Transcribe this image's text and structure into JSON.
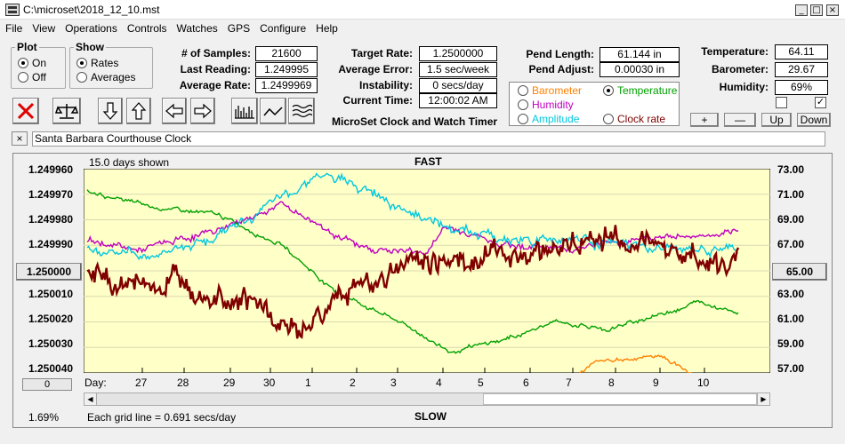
{
  "window": {
    "title": "C:\\microset\\2018_12_10.mst",
    "minimize": "_",
    "maximize": "□",
    "close": "×"
  },
  "menu": [
    "File",
    "View",
    "Operations",
    "Controls",
    "Watches",
    "GPS",
    "Configure",
    "Help"
  ],
  "plot": {
    "legend": "Plot",
    "on": "On",
    "off": "Off",
    "selected": "On"
  },
  "show": {
    "legend": "Show",
    "rates": "Rates",
    "averages": "Averages",
    "selected": "Rates"
  },
  "stats": {
    "samples_label": "# of Samples:",
    "samples": "21600",
    "last_label": "Last Reading:",
    "last": "1.249995",
    "avgrate_label": "Average Rate:",
    "avgrate": "1.2499969",
    "target_label": "Target Rate:",
    "target": "1.2500000",
    "avgerr_label": "Average Error:",
    "avgerr": "1.5 sec/week",
    "instab_label": "Instability:",
    "instab": "0 secs/day",
    "time_label": "Current Time:",
    "time": "12:00:02 AM",
    "pendlen_label": "Pend Length:",
    "pendlen": "61.144 in",
    "pendadj_label": "Pend Adjust:",
    "pendadj": "0.00030 in",
    "temp_label": "Temperature:",
    "temp": "64.11",
    "baro_label": "Barometer:",
    "baro": "29.67",
    "hum_label": "Humidity:",
    "hum": "69%"
  },
  "app_heading": "MicroSet Clock and Watch Timer",
  "sensors": [
    {
      "label": "Barometer",
      "color": "#ff8000",
      "selected": false
    },
    {
      "label": "Temperature",
      "color": "#00a000",
      "selected": true
    },
    {
      "label": "Humidity",
      "color": "#c000c0",
      "selected": false
    },
    {
      "label": "Amplitude",
      "color": "#00c8e0",
      "selected": false
    },
    {
      "label": "Clock rate",
      "color": "#800000",
      "selected": false
    }
  ],
  "checkboxes": [
    {
      "checked": false
    },
    {
      "checked": true
    }
  ],
  "adjust_buttons": [
    "+",
    "—",
    "Up",
    "Down"
  ],
  "clock_name": "Santa Barbara Courthouse Clock",
  "close_x": "×",
  "chart_data": {
    "type": "line",
    "days_shown": "15.0 days shown",
    "top_label": "FAST",
    "bottom_label": "SLOW",
    "left_ticks": [
      "1.249960",
      "1.249970",
      "1.249980",
      "1.249990",
      "1.250000",
      "1.250010",
      "1.250020",
      "1.250030",
      "1.250040"
    ],
    "right_ticks": [
      "73.00",
      "71.00",
      "69.00",
      "67.00",
      "65.00",
      "63.00",
      "61.00",
      "59.00",
      "57.00"
    ],
    "left_center": "1.250000",
    "right_center": "65.00",
    "left_range": [
      1.24996,
      1.25004
    ],
    "right_range": [
      57,
      73
    ],
    "day_label": "Day:",
    "x_labels": [
      "27",
      "28",
      "29",
      "30",
      "1",
      "2",
      "3",
      "4",
      "5",
      "6",
      "7",
      "8",
      "9",
      "10"
    ],
    "grid_note": "Each grid line = 0.691 secs/day",
    "zoom": "1.69%",
    "offset_btn": "0",
    "series": [
      {
        "color": "#800000",
        "width": 2.4,
        "y_from": -0.2,
        "y_to": -0.1,
        "noise": 3.0,
        "wave": [
          [
            0,
            -0.2
          ],
          [
            0.08,
            -0.6
          ],
          [
            0.16,
            -0.3
          ],
          [
            0.24,
            -1.0
          ],
          [
            0.32,
            -2.5
          ],
          [
            0.4,
            -0.8
          ],
          [
            0.5,
            0.4
          ],
          [
            0.6,
            0.5
          ],
          [
            0.7,
            0.9
          ],
          [
            0.8,
            1.3
          ],
          [
            0.88,
            1.1
          ],
          [
            0.95,
            0.4
          ],
          [
            1,
            0.1
          ]
        ]
      },
      {
        "color": "#00c8e0",
        "width": 1.4,
        "y_from": 0.9,
        "y_to": 0.8,
        "noise": 1.2,
        "wave": [
          [
            0,
            0.9
          ],
          [
            0.1,
            0.6
          ],
          [
            0.2,
            1.4
          ],
          [
            0.28,
            2.5
          ],
          [
            0.35,
            3.8
          ],
          [
            0.45,
            3.0
          ],
          [
            0.55,
            1.7
          ],
          [
            0.65,
            1.2
          ],
          [
            0.75,
            1.3
          ],
          [
            0.85,
            0.9
          ],
          [
            0.95,
            0.8
          ],
          [
            1,
            0.8
          ]
        ]
      },
      {
        "color": "#c000c0",
        "width": 1.4,
        "y_from": 1.2,
        "y_to": 1.4,
        "noise": 0.8,
        "wave": [
          [
            0,
            1.2
          ],
          [
            0.08,
            0.8
          ],
          [
            0.2,
            1.6
          ],
          [
            0.3,
            2.6
          ],
          [
            0.42,
            0.9
          ],
          [
            0.52,
            0.7
          ],
          [
            0.55,
            1.7
          ],
          [
            0.65,
            1.0
          ],
          [
            0.75,
            0.9
          ],
          [
            0.85,
            1.3
          ],
          [
            1,
            1.4
          ]
        ]
      },
      {
        "color": "#00a000",
        "width": 1.4,
        "y_from": 3.1,
        "y_to": -1.6,
        "noise": 0.5,
        "wave": [
          [
            0,
            3.1
          ],
          [
            0.1,
            2.5
          ],
          [
            0.2,
            2.2
          ],
          [
            0.3,
            1.0
          ],
          [
            0.38,
            -0.8
          ],
          [
            0.48,
            -2.0
          ],
          [
            0.56,
            -3.2
          ],
          [
            0.64,
            -2.7
          ],
          [
            0.72,
            -2.0
          ],
          [
            0.8,
            -2.3
          ],
          [
            0.88,
            -1.7
          ],
          [
            0.94,
            -1.2
          ],
          [
            1,
            -1.6
          ]
        ]
      },
      {
        "color": "#ff8000",
        "width": 1.4,
        "y_from": -5.5,
        "y_to": -5.6,
        "noise": 0.5,
        "wave": [
          [
            0,
            -5.5
          ],
          [
            0.1,
            -5.6
          ],
          [
            0.2,
            -6.5
          ],
          [
            0.28,
            -7.2
          ],
          [
            0.38,
            -6.2
          ],
          [
            0.48,
            -5.8
          ],
          [
            0.58,
            -6.2
          ],
          [
            0.68,
            -5.2
          ],
          [
            0.78,
            -3.6
          ],
          [
            0.88,
            -3.3
          ],
          [
            0.96,
            -4.5
          ],
          [
            1,
            -5.6
          ]
        ]
      }
    ]
  }
}
